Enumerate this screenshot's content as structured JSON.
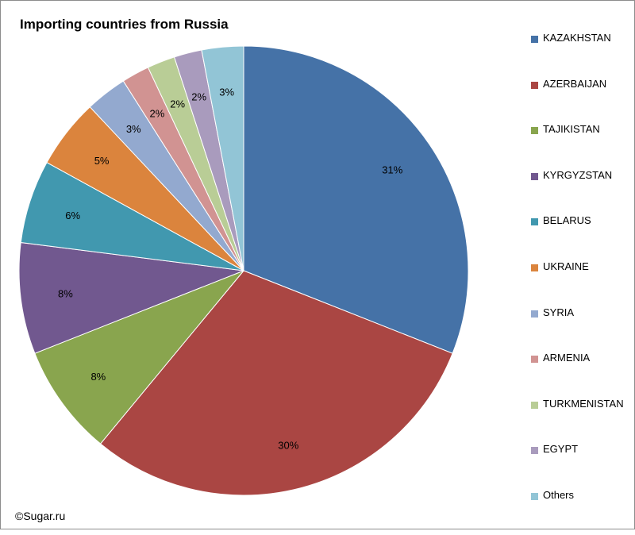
{
  "chart_data": {
    "type": "pie",
    "title": "Importing countries from Russia",
    "categories": [
      "KAZAKHSTAN",
      "AZERBAIJAN",
      "TAJIKISTAN",
      "KYRGYZSTAN",
      "BELARUS",
      "UKRAINE",
      "SYRIA",
      "ARMENIA",
      "TURKMENISTAN",
      "EGYPT",
      "Others"
    ],
    "values": [
      31,
      30,
      8,
      8,
      6,
      5,
      3,
      2,
      2,
      2,
      3
    ],
    "data_labels": [
      "31%",
      "30%",
      "8%",
      "8%",
      "6%",
      "5%",
      "3%",
      "2%",
      "2%",
      "2%",
      "3%"
    ],
    "colors": [
      "#4572a7",
      "#aa4643",
      "#89a54e",
      "#71588f",
      "#4198af",
      "#db843d",
      "#93a9cf",
      "#d19392",
      "#b9cd96",
      "#a99bbd",
      "#92c5d6"
    ],
    "legend_position": "right",
    "start_angle": "12 o'clock",
    "direction": "clockwise"
  },
  "footer": "©Sugar.ru"
}
